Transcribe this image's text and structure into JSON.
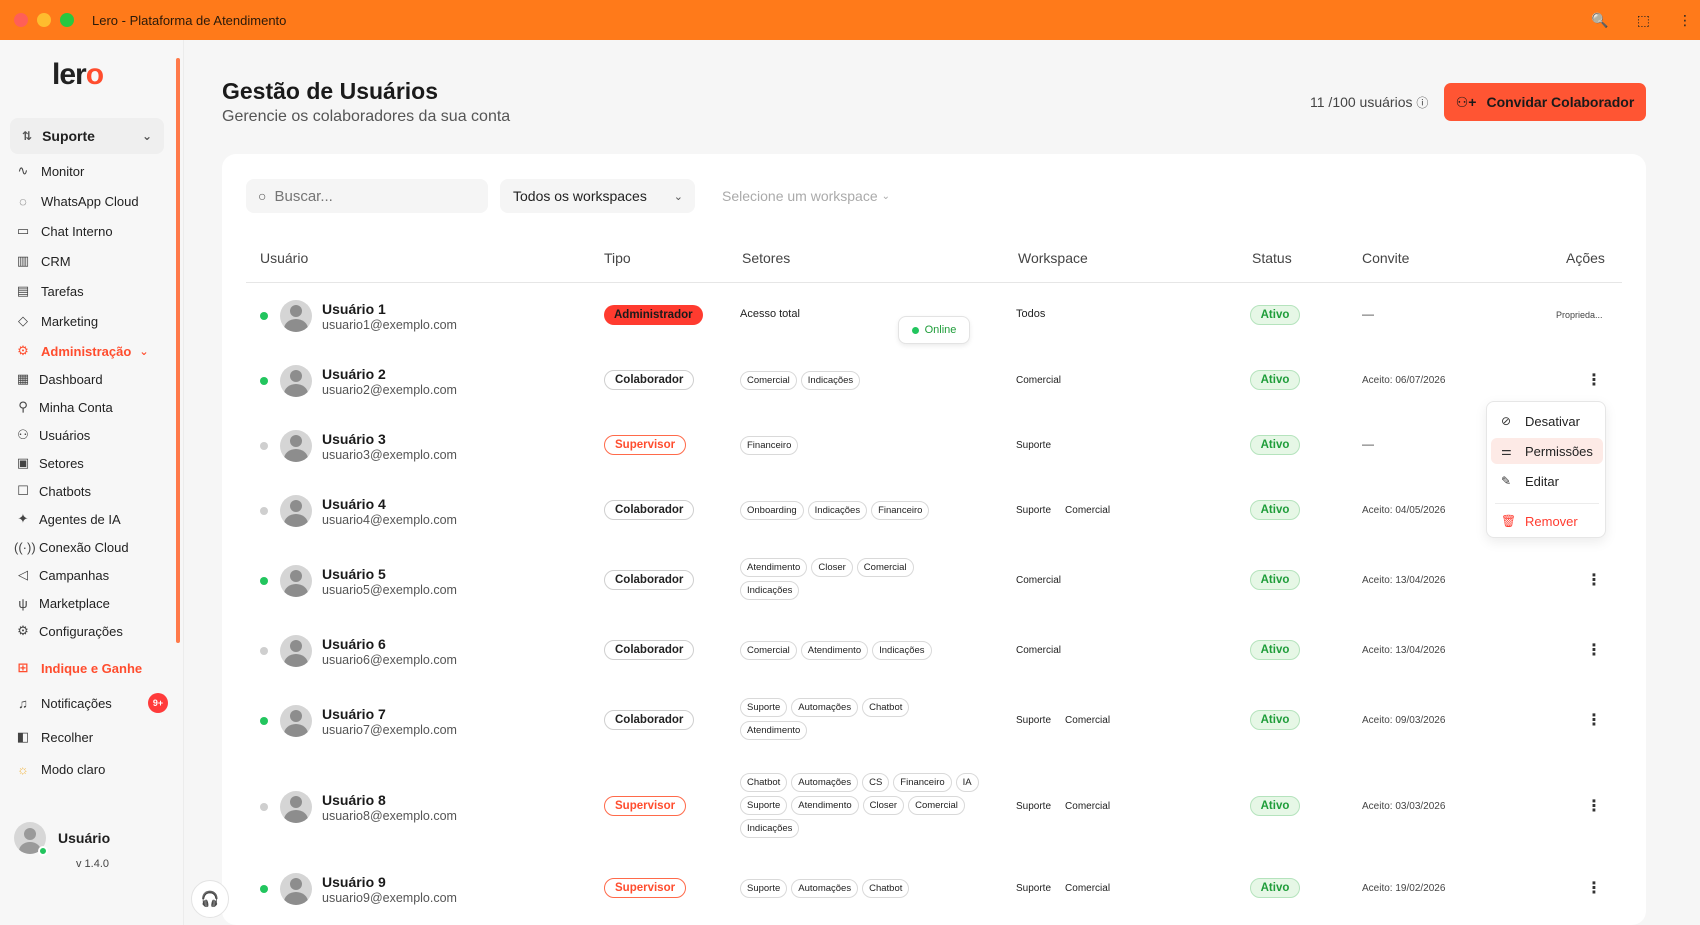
{
  "window": {
    "title": "Lero - Plataforma de Atendimento"
  },
  "brand": {
    "logo_text_a": "ler",
    "logo_text_b": "o"
  },
  "sidebar": {
    "workspace": "Suporte",
    "items": [
      {
        "label": "Monitor",
        "icon": "activity-icon"
      },
      {
        "label": "WhatsApp Cloud",
        "icon": "whatsapp-icon"
      },
      {
        "label": "Chat Interno",
        "icon": "chat-icon"
      },
      {
        "label": "CRM",
        "icon": "columns-icon"
      },
      {
        "label": "Tarefas",
        "icon": "clipboard-icon"
      },
      {
        "label": "Marketing",
        "icon": "tag-icon"
      }
    ],
    "admin": {
      "label": "Administração"
    },
    "admin_items": [
      {
        "label": "Dashboard"
      },
      {
        "label": "Minha Conta"
      },
      {
        "label": "Usuários"
      },
      {
        "label": "Setores"
      },
      {
        "label": "Chatbots"
      },
      {
        "label": "Agentes de IA"
      },
      {
        "label": "Conexão Cloud"
      },
      {
        "label": "Campanhas"
      },
      {
        "label": "Marketplace"
      },
      {
        "label": "Configurações"
      }
    ],
    "refer": "Indique e Ganhe",
    "notifications": {
      "label": "Notificações",
      "badge": "9+"
    },
    "collapse": "Recolher",
    "theme": "Modo claro",
    "user": {
      "name": "Usuário",
      "version": "v 1.4.0"
    }
  },
  "header": {
    "title": "Gestão de Usuários",
    "subtitle": "Gerencie os colaboradores da sua conta",
    "user_count": "11 /100 usuários",
    "invite_label": "Convidar Colaborador"
  },
  "filters": {
    "search_placeholder": "Buscar...",
    "workspace_filter": "Todos os workspaces",
    "workspace_select": "Selecione um workspace"
  },
  "table": {
    "columns": [
      "Usuário",
      "Tipo",
      "Setores",
      "Workspace",
      "Status",
      "Convite",
      "Ações"
    ],
    "rows": [
      {
        "name": "Usuário 1",
        "email": "usuario1@exemplo.com",
        "online": true,
        "type": "Administrador",
        "sectors": [
          "Acesso total"
        ],
        "workspaces": [
          "Todos"
        ],
        "status": "Ativo",
        "invite": "—",
        "actions": "Proprieda..."
      },
      {
        "name": "Usuário 2",
        "email": "usuario2@exemplo.com",
        "online": true,
        "type": "Colaborador",
        "sectors": [
          "Comercial",
          "Indicações"
        ],
        "workspaces": [
          "Comercial"
        ],
        "status": "Ativo",
        "invite": "Aceito: 06/07/2026",
        "actions": "⋮"
      },
      {
        "name": "Usuário 3",
        "email": "usuario3@exemplo.com",
        "online": false,
        "type": "Supervisor",
        "sectors": [
          "Financeiro"
        ],
        "workspaces": [
          "Suporte"
        ],
        "status": "Ativo",
        "invite": "—",
        "actions": ""
      },
      {
        "name": "Usuário 4",
        "email": "usuario4@exemplo.com",
        "online": false,
        "type": "Colaborador",
        "sectors": [
          "Onboarding",
          "Indicações",
          "Financeiro"
        ],
        "workspaces": [
          "Suporte",
          "Comercial"
        ],
        "status": "Ativo",
        "invite": "Aceito: 04/05/2026",
        "actions": ""
      },
      {
        "name": "Usuário 5",
        "email": "usuario5@exemplo.com",
        "online": true,
        "type": "Colaborador",
        "sectors": [
          "Atendimento",
          "Closer",
          "Comercial",
          "Indicações"
        ],
        "workspaces": [
          "Comercial"
        ],
        "status": "Ativo",
        "invite": "Aceito: 13/04/2026",
        "actions": "⋮"
      },
      {
        "name": "Usuário 6",
        "email": "usuario6@exemplo.com",
        "online": false,
        "type": "Colaborador",
        "sectors": [
          "Comercial",
          "Atendimento",
          "Indicações"
        ],
        "workspaces": [
          "Comercial"
        ],
        "status": "Ativo",
        "invite": "Aceito: 13/04/2026",
        "actions": "⋮"
      },
      {
        "name": "Usuário 7",
        "email": "usuario7@exemplo.com",
        "online": true,
        "type": "Colaborador",
        "sectors": [
          "Suporte",
          "Automações",
          "Chatbot",
          "Atendimento"
        ],
        "workspaces": [
          "Suporte",
          "Comercial"
        ],
        "status": "Ativo",
        "invite": "Aceito: 09/03/2026",
        "actions": "⋮"
      },
      {
        "name": "Usuário 8",
        "email": "usuario8@exemplo.com",
        "online": false,
        "type": "Supervisor",
        "sectors": [
          "Chatbot",
          "Automações",
          "CS",
          "Financeiro",
          "IA",
          "Suporte",
          "Atendimento",
          "Closer",
          "Comercial",
          "Indicações"
        ],
        "workspaces": [
          "Suporte",
          "Comercial"
        ],
        "status": "Ativo",
        "invite": "Aceito: 03/03/2026",
        "actions": "⋮"
      },
      {
        "name": "Usuário 9",
        "email": "usuario9@exemplo.com",
        "online": true,
        "type": "Supervisor",
        "sectors": [
          "Suporte",
          "Automações",
          "Chatbot"
        ],
        "workspaces": [
          "Suporte",
          "Comercial"
        ],
        "status": "Ativo",
        "invite": "Aceito: 19/02/2026",
        "actions": "⋮"
      }
    ]
  },
  "online_tooltip": "Online",
  "context_menu": {
    "items": [
      "Desativar",
      "Permissões",
      "Editar",
      "Remover"
    ]
  },
  "colors": {
    "accent": "#ff5533",
    "titlebar": "#ff7a1a",
    "active_green": "#22c55e"
  }
}
